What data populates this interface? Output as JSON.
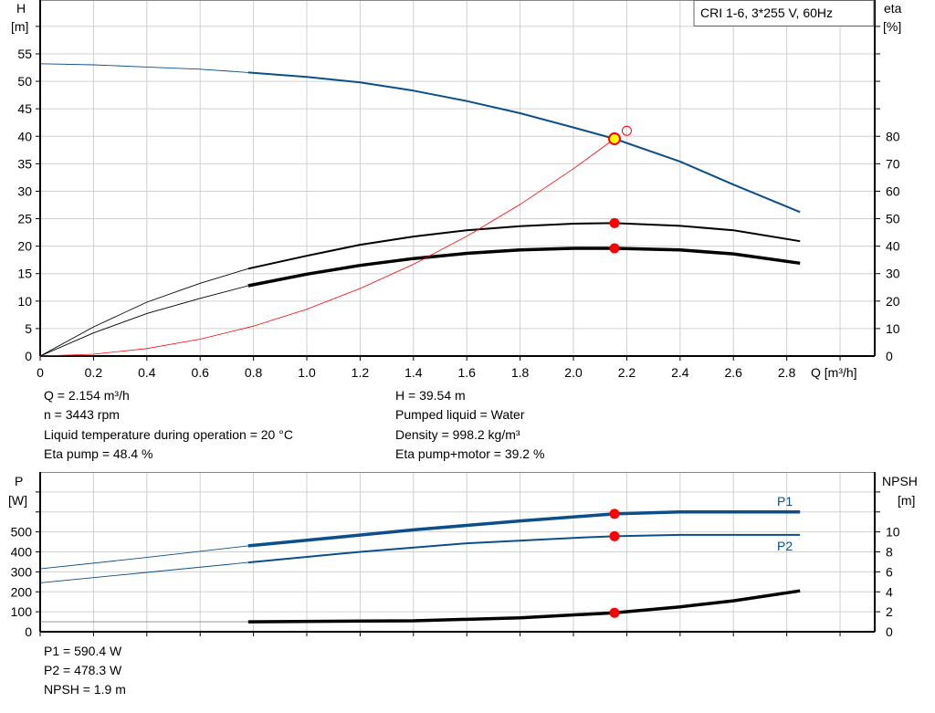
{
  "chart_data": [
    {
      "type": "line",
      "title": "CRI 1-6, 3*255 V, 60Hz",
      "xlabel": "Q [m³/h]",
      "ylabel": "H [m]",
      "ylabel_right": "eta [%]",
      "xlim": [
        0,
        3.13
      ],
      "ylim": [
        0,
        64.8
      ],
      "ylim_right": [
        0,
        129.6
      ],
      "grid": true,
      "x_ticks": [
        "0",
        "0.2",
        "0.4",
        "0.6",
        "0.8",
        "1.0",
        "1.2",
        "1.4",
        "1.6",
        "1.8",
        "2.0",
        "2.2",
        "2.4",
        "2.6",
        "2.8"
      ],
      "y_ticks": [
        "0",
        "5",
        "10",
        "15",
        "20",
        "25",
        "30",
        "35",
        "40",
        "45",
        "50",
        "55"
      ],
      "y_ticks_right": [
        "0",
        "10",
        "20",
        "30",
        "40",
        "50",
        "60",
        "70",
        "80"
      ],
      "series": [
        {
          "key": "H",
          "axis": "left",
          "color": "#0b4f8a",
          "thin_until": 0.78,
          "x": [
            0,
            0.2,
            0.4,
            0.6,
            0.78,
            1.0,
            1.2,
            1.4,
            1.6,
            1.8,
            2.0,
            2.154,
            2.4,
            2.6,
            2.85
          ],
          "y": [
            53.2,
            53.0,
            52.6,
            52.2,
            51.6,
            50.8,
            49.8,
            48.3,
            46.4,
            44.2,
            41.6,
            39.54,
            35.4,
            31.2,
            26.2
          ]
        },
        {
          "key": "eta_pump",
          "axis": "right",
          "color": "#000000",
          "thin_until": 0.78,
          "x": [
            0,
            0.2,
            0.4,
            0.6,
            0.78,
            1.0,
            1.2,
            1.4,
            1.6,
            1.8,
            2.0,
            2.154,
            2.4,
            2.6,
            2.85
          ],
          "y": [
            0,
            10.6,
            19.6,
            26.5,
            31.8,
            36.5,
            40.5,
            43.5,
            45.8,
            47.3,
            48.2,
            48.4,
            47.4,
            45.8,
            41.8
          ]
        },
        {
          "key": "eta_pump_motor",
          "axis": "right",
          "color": "#000000",
          "thin_until": 0.78,
          "thick": true,
          "x": [
            0,
            0.2,
            0.4,
            0.6,
            0.78,
            1.0,
            1.2,
            1.4,
            1.6,
            1.8,
            2.0,
            2.154,
            2.4,
            2.6,
            2.85
          ],
          "y": [
            0,
            8.4,
            15.5,
            21,
            25.6,
            29.8,
            33,
            35.5,
            37.4,
            38.6,
            39.2,
            39.2,
            38.6,
            37.2,
            33.8
          ]
        },
        {
          "key": "system_curve",
          "axis": "left",
          "color": "#ff0000",
          "x": [
            0,
            0.2,
            0.4,
            0.6,
            0.8,
            1.0,
            1.2,
            1.4,
            1.6,
            1.8,
            2.0,
            2.154
          ],
          "y": [
            0,
            0.34,
            1.36,
            3.07,
            5.45,
            8.52,
            12.3,
            16.7,
            21.8,
            27.6,
            34.1,
            39.54
          ]
        }
      ],
      "duty_point": {
        "Q": 2.154,
        "H": 39.54,
        "eta_pump": 48.4,
        "eta_pump_motor": 39.2
      },
      "open_marker": {
        "Q": 2.2,
        "H": 41.0
      }
    },
    {
      "type": "line",
      "xlabel": "",
      "ylabel": "P [W]",
      "ylabel_right": "NPSH [m]",
      "xlim": [
        0,
        3.13
      ],
      "ylim": [
        0,
        800
      ],
      "ylim_right": [
        0,
        16
      ],
      "grid": true,
      "y_ticks": [
        "0",
        "100",
        "200",
        "300",
        "400",
        "500"
      ],
      "y_ticks_right": [
        "0",
        "2",
        "4",
        "6",
        "8",
        "10"
      ],
      "series": [
        {
          "key": "P1",
          "name": "P1",
          "axis": "left",
          "color": "#0b4f8a",
          "thin_until": 0.78,
          "thick": true,
          "x": [
            0,
            0.4,
            0.78,
            1.0,
            1.4,
            1.8,
            2.154,
            2.4,
            2.85
          ],
          "y": [
            315,
            372,
            430,
            458,
            510,
            555,
            590.4,
            600,
            600
          ]
        },
        {
          "key": "P2",
          "name": "P2",
          "axis": "left",
          "color": "#0b4f8a",
          "thin_until": 0.78,
          "x": [
            0,
            0.4,
            0.78,
            1.2,
            1.6,
            2.0,
            2.154,
            2.4,
            2.85
          ],
          "y": [
            245,
            297,
            347,
            400,
            443,
            470,
            478.3,
            485,
            485
          ]
        },
        {
          "key": "NPSH",
          "axis": "right",
          "color": "#000000",
          "thin_until": 0.78,
          "thick": true,
          "x": [
            0,
            0.4,
            0.78,
            1.4,
            1.8,
            2.154,
            2.4,
            2.6,
            2.85
          ],
          "y": [
            1.0,
            1.0,
            1.0,
            1.1,
            1.4,
            1.9,
            2.5,
            3.1,
            4.1
          ]
        }
      ],
      "duty_point": {
        "Q": 2.154,
        "P1": 590.4,
        "P2": 478.3,
        "NPSH": 1.9
      }
    }
  ],
  "axes": {
    "top_left_label": "H",
    "top_left_unit": "[m]",
    "top_right_label": "eta",
    "top_right_unit": "[%]",
    "x_label": "Q [m³/h]",
    "bottom_left_label": "P",
    "bottom_left_unit": "[W]",
    "bottom_right_label": "NPSH",
    "bottom_right_unit": "[m]",
    "p1_label": "P1",
    "p2_label": "P2"
  },
  "title_box": "CRI 1-6, 3*255 V, 60Hz",
  "info": {
    "q": "Q = 2.154 m³/h",
    "n": "n = 3443 rpm",
    "temp": "Liquid temperature during operation = 20 °C",
    "eta_pump": "Eta pump = 48.4 %",
    "h": "H = 39.54 m",
    "liquid": "Pumped liquid = Water",
    "density": "Density = 998.2 kg/m³",
    "eta_pm": "Eta pump+motor = 39.2 %",
    "p1": "P1 = 590.4 W",
    "p2": "P2 = 478.3 W",
    "npsh": "NPSH = 1.9 m"
  },
  "colors": {
    "blue": "#0b4f8a",
    "red": "#ff0000",
    "marker_fill": "#ffff00",
    "grid": "#d0d0d0"
  }
}
